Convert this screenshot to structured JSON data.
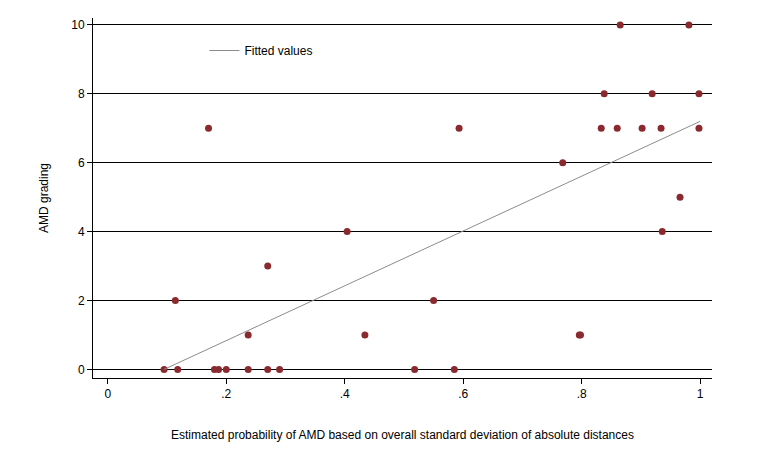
{
  "chart_data": {
    "type": "scatter",
    "x_label": "Estimated probability of AMD based on overall standard deviation of absolute distances",
    "y_label": "AMD grading",
    "xlim": [
      -0.025,
      1.02
    ],
    "ylim": [
      -0.25,
      10.2
    ],
    "xticks": [
      0,
      {
        "value": 0.2,
        "label": ".2"
      },
      {
        "value": 0.4,
        "label": ".4"
      },
      {
        "value": 0.6,
        "label": ".6"
      },
      {
        "value": 0.8,
        "label": ".8"
      },
      1
    ],
    "yticks": [
      0,
      2,
      4,
      6,
      8,
      10
    ],
    "grid": "y",
    "legend": "upper left",
    "series": [
      {
        "type": "scatter",
        "marker": "circle",
        "color": "#8b2a2e",
        "x": [
          0.095,
          0.118,
          0.114,
          0.17,
          0.18,
          0.187,
          0.2,
          0.237,
          0.237,
          0.27,
          0.27,
          0.29,
          0.404,
          0.434,
          0.518,
          0.55,
          0.585,
          0.593,
          0.768,
          0.796,
          0.798,
          0.833,
          0.838,
          0.86,
          0.865,
          0.902,
          0.919,
          0.934,
          0.936,
          0.966,
          0.981,
          0.998,
          0.998
        ],
        "values": [
          0,
          0,
          2,
          7,
          0,
          0,
          0,
          0,
          1,
          0,
          3,
          0,
          4,
          1,
          0,
          2,
          0,
          7,
          6,
          1,
          1,
          7,
          8,
          7,
          10,
          7,
          8,
          7,
          4,
          5,
          10,
          8,
          7
        ]
      },
      {
        "name": "Fitted values",
        "type": "line",
        "line_style": "solid",
        "color": "#8c8c8c",
        "x": [
          0.095,
          1.0
        ],
        "values": [
          0.0,
          7.2
        ]
      }
    ]
  }
}
